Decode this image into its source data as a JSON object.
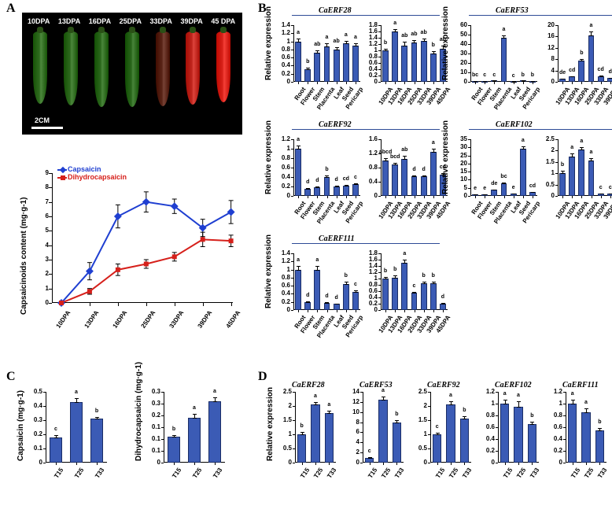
{
  "panel_labels": {
    "A": "A",
    "B": "B",
    "C": "C",
    "D": "D"
  },
  "panelA": {
    "photo": {
      "stages": [
        "10DPA",
        "13DPA",
        "16DPA",
        "25DPA",
        "33DPA",
        "39DPA",
        "45 DPA"
      ],
      "pepper_colors": [
        "#2f6b1f",
        "#2e6a1e",
        "#2c691d",
        "#2a671c",
        "#5a2518",
        "#c0261e",
        "#d8221a"
      ],
      "pepper_heights": [
        92,
        94,
        96,
        96,
        95,
        93,
        90
      ],
      "scale_label": "2CM"
    },
    "line_chart": {
      "ylabel": "Capsaicinoids content (mg·g-1)",
      "x_categories": [
        "10DPA",
        "13DPA",
        "16DPA",
        "25DPA",
        "33DPA",
        "39DPA",
        "45DPA"
      ],
      "ylim": [
        0,
        9
      ],
      "ytick_step": 1,
      "series": [
        {
          "name": "Capsaicin",
          "color": "#1f3fd1",
          "marker": "diamond",
          "y": [
            0,
            2.2,
            6.0,
            7.0,
            6.7,
            5.2,
            6.3
          ],
          "err": [
            0.1,
            0.6,
            0.8,
            0.7,
            0.5,
            0.6,
            0.8
          ]
        },
        {
          "name": "Dihydrocapsaicin",
          "color": "#d6201b",
          "marker": "square",
          "y": [
            0,
            0.8,
            2.3,
            2.7,
            3.2,
            4.4,
            4.3
          ],
          "err": [
            0.1,
            0.2,
            0.4,
            0.3,
            0.3,
            0.5,
            0.4
          ]
        }
      ]
    }
  },
  "panelB": {
    "ylabel": "Relative expression",
    "tissue_cats": [
      "Root",
      "Flower",
      "Stem",
      "Placenta",
      "Leaf",
      "Seed",
      "Pericarp"
    ],
    "stage_cats": [
      "10DPA",
      "13DPA",
      "16DPA",
      "25DPA",
      "33DPA",
      "39DPA",
      "45DPA"
    ],
    "bar_color": "#3b5bb5",
    "charts": [
      {
        "title": "CaERF28",
        "tissue": {
          "ymax": 1.4,
          "yticks": [
            0,
            0.2,
            0.4,
            0.6,
            0.8,
            1.0,
            1.2,
            1.4
          ],
          "vals": [
            1.0,
            0.32,
            0.72,
            0.88,
            0.8,
            0.95,
            0.9
          ],
          "err": [
            0.08,
            0.05,
            0.07,
            0.1,
            0.08,
            0.08,
            0.07
          ],
          "sig": [
            "a",
            "b",
            "ab",
            "a",
            "ab",
            "a",
            "a"
          ]
        },
        "stage": {
          "ymax": 1.8,
          "yticks": [
            0,
            0.2,
            0.4,
            0.6,
            0.8,
            1.0,
            1.2,
            1.4,
            1.6,
            1.8
          ],
          "vals": [
            1.0,
            1.6,
            1.15,
            1.25,
            1.3,
            0.9,
            1.05
          ],
          "err": [
            0.08,
            0.1,
            0.15,
            0.1,
            0.1,
            0.1,
            0.12
          ],
          "sig": [
            "b",
            "a",
            "ab",
            "ab",
            "ab",
            "b",
            "ab"
          ]
        }
      },
      {
        "title": "CaERF53",
        "tissue": {
          "ymax": 60,
          "yticks": [
            0,
            10,
            20,
            30,
            40,
            50,
            60
          ],
          "vals": [
            1.0,
            1.2,
            1.5,
            47,
            0.8,
            1.3,
            1.0
          ],
          "err": [
            0.3,
            0.3,
            0.3,
            3,
            0.3,
            0.3,
            0.3
          ],
          "sig": [
            "bc",
            "c",
            "c",
            "a",
            "c",
            "b",
            "b"
          ]
        },
        "stage": {
          "ymax": 20,
          "yticks": [
            0,
            4,
            8,
            12,
            16,
            20
          ],
          "vals": [
            1.0,
            2.0,
            7.5,
            16.5,
            2.0,
            1.5,
            1.0
          ],
          "err": [
            0.3,
            0.3,
            0.8,
            1.5,
            0.4,
            0.3,
            0.3
          ],
          "sig": [
            "de",
            "cd",
            "b",
            "a",
            "cd",
            "d",
            "de"
          ]
        }
      },
      {
        "title": "CaERF92",
        "tissue": {
          "ymax": 1.2,
          "yticks": [
            0,
            0.2,
            0.4,
            0.6,
            0.8,
            1.0,
            1.2
          ],
          "vals": [
            1.0,
            0.15,
            0.18,
            0.4,
            0.2,
            0.22,
            0.25
          ],
          "err": [
            0.08,
            0.03,
            0.03,
            0.05,
            0.03,
            0.03,
            0.04
          ],
          "sig": [
            "a",
            "d",
            "d",
            "b",
            "d",
            "cd",
            "c"
          ]
        },
        "stage": {
          "ymax": 1.6,
          "yticks": [
            0,
            0.4,
            0.8,
            1.2,
            1.6
          ],
          "vals": [
            1.0,
            0.88,
            1.05,
            0.55,
            0.55,
            1.25,
            0.6
          ],
          "err": [
            0.1,
            0.08,
            0.1,
            0.05,
            0.05,
            0.1,
            0.06
          ],
          "sig": [
            "abcd",
            "bcd",
            "ab",
            "d",
            "d",
            "a",
            "cd"
          ]
        }
      },
      {
        "title": "CaERF102",
        "tissue": {
          "ymax": 35,
          "yticks": [
            0,
            5,
            10,
            15,
            20,
            25,
            30,
            35
          ],
          "vals": [
            1.0,
            1.0,
            4.0,
            8.0,
            1.5,
            29,
            2.5
          ],
          "err": [
            0.3,
            0.3,
            0.5,
            0.8,
            0.3,
            2,
            0.4
          ],
          "sig": [
            "e",
            "e",
            "de",
            "bc",
            "e",
            "a",
            "cd"
          ]
        },
        "stage": {
          "ymax": 2.5,
          "yticks": [
            0,
            0.5,
            1.0,
            1.5,
            2.0,
            2.5
          ],
          "vals": [
            1.0,
            1.75,
            2.05,
            1.55,
            0.12,
            0.1,
            0.1
          ],
          "err": [
            0.15,
            0.15,
            0.15,
            0.15,
            0.03,
            0.03,
            0.03
          ],
          "sig": [
            "b",
            "a",
            "a",
            "a",
            "c",
            "c",
            "c"
          ]
        }
      },
      {
        "title": "CaERF111",
        "tissue": {
          "ymax": 1.4,
          "yticks": [
            0,
            0.2,
            0.4,
            0.6,
            0.8,
            1.0,
            1.2,
            1.4
          ],
          "vals": [
            1.0,
            0.2,
            1.0,
            0.18,
            0.15,
            0.65,
            0.45
          ],
          "err": [
            0.1,
            0.03,
            0.1,
            0.03,
            0.03,
            0.06,
            0.05
          ],
          "sig": [
            "a",
            "d",
            "a",
            "d",
            "d",
            "b",
            "c"
          ]
        },
        "stage": {
          "ymax": 1.8,
          "yticks": [
            0,
            0.2,
            0.4,
            0.6,
            0.8,
            1.0,
            1.2,
            1.4,
            1.6,
            1.8
          ],
          "vals": [
            1.0,
            1.02,
            1.5,
            0.55,
            0.85,
            0.85,
            0.2
          ],
          "err": [
            0.08,
            0.1,
            0.12,
            0.06,
            0.08,
            0.08,
            0.04
          ],
          "sig": [
            "b",
            "b",
            "a",
            "c",
            "b",
            "b",
            "d"
          ]
        }
      }
    ]
  },
  "panelC": {
    "cats": [
      "T15",
      "T25",
      "T33"
    ],
    "charts": [
      {
        "ylabel": "Capsaicin (mg·g-1)",
        "ymax": 0.5,
        "yticks": [
          0,
          0.1,
          0.2,
          0.3,
          0.4,
          0.5
        ],
        "vals": [
          0.18,
          0.43,
          0.31
        ],
        "err": [
          0.02,
          0.03,
          0.02
        ],
        "sig": [
          "c",
          "a",
          "b"
        ]
      },
      {
        "ylabel": "Dihydrocapsaicin (mg·g-1)",
        "ymax": 0.3,
        "yticks": [
          0,
          0.05,
          0.1,
          0.15,
          0.2,
          0.25,
          0.3
        ],
        "vals": [
          0.11,
          0.19,
          0.26
        ],
        "err": [
          0.01,
          0.02,
          0.02
        ],
        "sig": [
          "b",
          "a",
          "a"
        ]
      }
    ]
  },
  "panelD": {
    "ylabel": "Relative expression",
    "cats": [
      "T15",
      "T25",
      "T33"
    ],
    "charts": [
      {
        "title": "CaERF28",
        "ymax": 2.5,
        "yticks": [
          0,
          0.5,
          1.0,
          1.5,
          2.0,
          2.5
        ],
        "vals": [
          1.0,
          2.05,
          1.75
        ],
        "err": [
          0.1,
          0.12,
          0.1
        ],
        "sig": [
          "b",
          "a",
          "a"
        ]
      },
      {
        "title": "CaERF53",
        "ymax": 14,
        "yticks": [
          0,
          2,
          4,
          6,
          8,
          10,
          12,
          14
        ],
        "vals": [
          1.0,
          12.5,
          8.0
        ],
        "err": [
          0.3,
          0.8,
          0.6
        ],
        "sig": [
          "c",
          "a",
          "b"
        ]
      },
      {
        "title": "CaERF92",
        "ymax": 2.5,
        "yticks": [
          0,
          0.5,
          1.0,
          1.5,
          2.0,
          2.5
        ],
        "vals": [
          1.0,
          2.05,
          1.55
        ],
        "err": [
          0.08,
          0.15,
          0.12
        ],
        "sig": [
          "c",
          "a",
          "b"
        ]
      },
      {
        "title": "CaERF102",
        "ymax": 1.2,
        "yticks": [
          0,
          0.2,
          0.4,
          0.6,
          0.8,
          1.0,
          1.2
        ],
        "vals": [
          1.0,
          0.95,
          0.65
        ],
        "err": [
          0.08,
          0.1,
          0.06
        ],
        "sig": [
          "a",
          "a",
          "b"
        ]
      },
      {
        "title": "CaERF111",
        "ymax": 1.2,
        "yticks": [
          0,
          0.2,
          0.4,
          0.6,
          0.8,
          1.0,
          1.2
        ],
        "vals": [
          1.0,
          0.85,
          0.55
        ],
        "err": [
          0.08,
          0.08,
          0.05
        ],
        "sig": [
          "a",
          "a",
          "b"
        ]
      }
    ]
  }
}
